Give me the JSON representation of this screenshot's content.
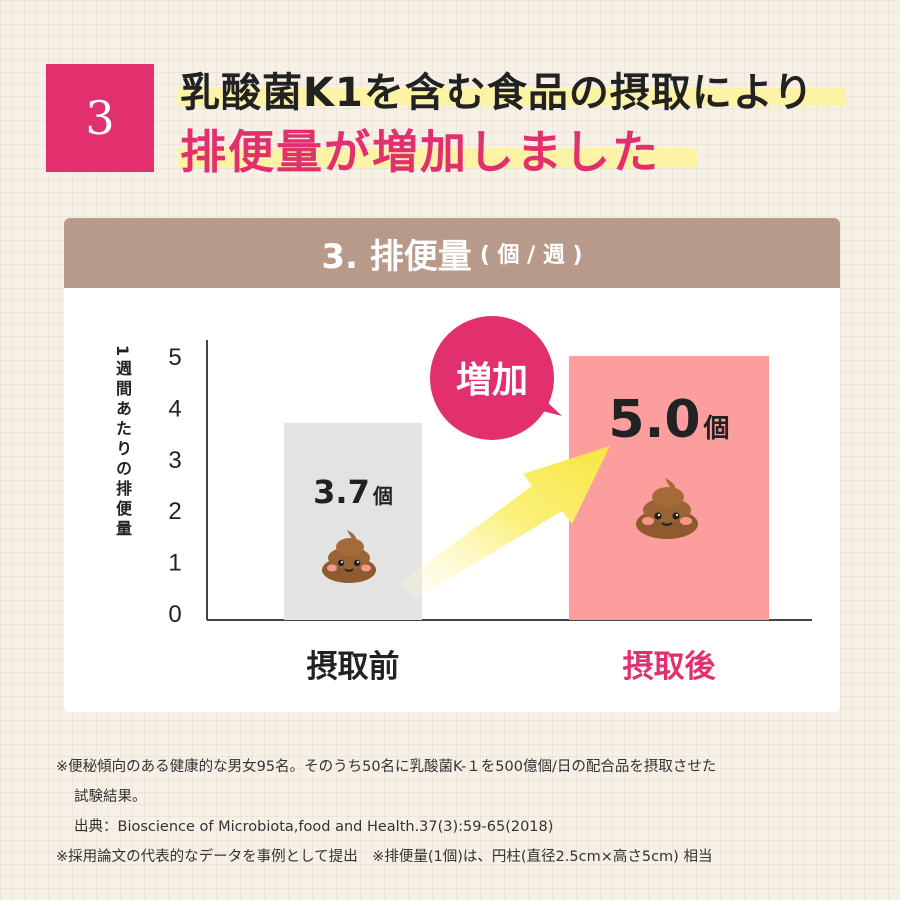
{
  "badge": "3",
  "headline": {
    "line1": "乳酸菌K1を含む食品の摂取により",
    "line2": "排便量が増加しました"
  },
  "card": {
    "title": "3. 排便量",
    "unit": "( 個 / 週 )"
  },
  "callout": "増加",
  "colors": {
    "accent": "#e2306f",
    "before_bar": "#e3e3e3",
    "after_bar": "#fd9e9e",
    "header": "#b89a8a"
  },
  "chart_data": {
    "type": "bar",
    "categories": [
      "摂取前",
      "摂取後"
    ],
    "values": [
      3.7,
      5.0
    ],
    "value_labels": [
      "3.7",
      "5.0"
    ],
    "value_unit": "個",
    "ylabel": "1週間あたりの排便量",
    "ylim": [
      0,
      5
    ],
    "yticks": [
      0,
      1,
      2,
      3,
      4,
      5
    ],
    "grid": false
  },
  "notes": {
    "line1": "※便秘傾向のある健康的な男女95名。そのうち50名に乳酸菌K-１を500億個/日の配合品を摂取させた",
    "line2": "試験結果。",
    "line3": "出典：Bioscience of Microbiota,food and Health.37(3):59-65(2018)",
    "line4": "※採用論文の代表的なデータを事例として提出　※排便量(1個)は、円柱(直径2.5cm×高さ5cm) 相当"
  }
}
